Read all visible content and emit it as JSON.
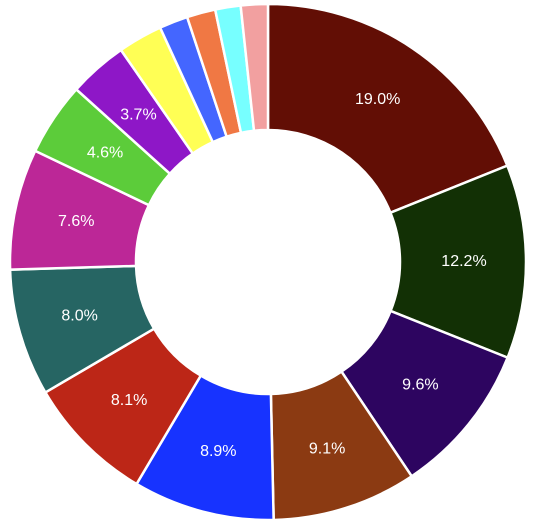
{
  "chart_data": {
    "type": "pie",
    "donut": true,
    "title": "",
    "legend": "none",
    "slices": [
      {
        "value": 19.0,
        "label": "19.0%",
        "color": "#620e05"
      },
      {
        "value": 12.2,
        "label": "12.2%",
        "color": "#123005"
      },
      {
        "value": 9.6,
        "label": "9.6%",
        "color": "#2d0560"
      },
      {
        "value": 9.1,
        "label": "9.1%",
        "color": "#8b3a12"
      },
      {
        "value": 8.9,
        "label": "8.9%",
        "color": "#1733ff"
      },
      {
        "value": 8.1,
        "label": "8.1%",
        "color": "#bc2617"
      },
      {
        "value": 8.0,
        "label": "8.0%",
        "color": "#266563"
      },
      {
        "value": 7.6,
        "label": "7.6%",
        "color": "#bc2797"
      },
      {
        "value": 4.6,
        "label": "4.6%",
        "color": "#5ccc3a"
      },
      {
        "value": 3.7,
        "label": "3.7%",
        "color": "#8e17c7"
      },
      {
        "value": 2.8,
        "label": "",
        "color": "#ffff55"
      },
      {
        "value": 1.8,
        "label": "",
        "color": "#4466ff"
      },
      {
        "value": 1.8,
        "label": "",
        "color": "#f07844"
      },
      {
        "value": 1.6,
        "label": "",
        "color": "#77ffff"
      },
      {
        "value": 1.7,
        "label": "",
        "color": "#f2a0a0"
      }
    ]
  }
}
